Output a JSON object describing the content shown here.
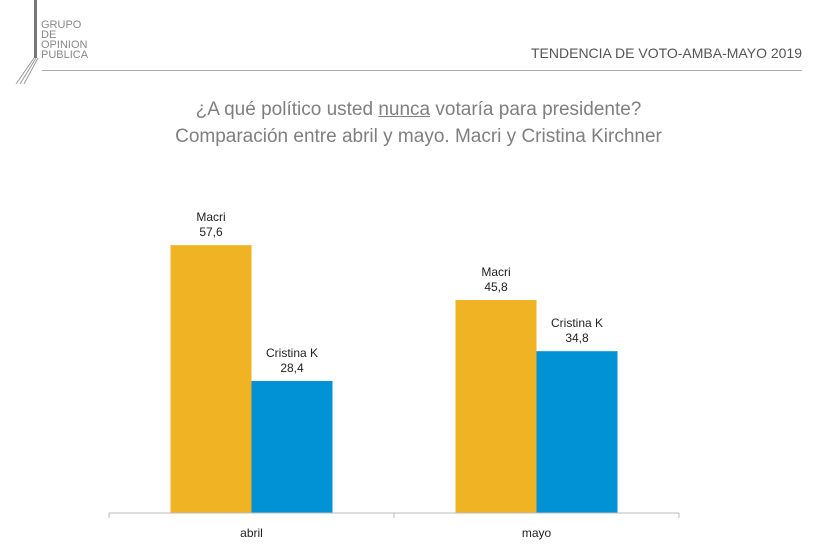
{
  "logo": {
    "lines": [
      "GRUPO",
      "DE",
      "OPINION",
      "PUBLICA"
    ]
  },
  "header": {
    "title": "TENDENCIA DE VOTO-AMBA-MAYO 2019"
  },
  "title": {
    "line1_pre": "¿A qué político usted ",
    "line1_emph": "nunca",
    "line1_post": " votaría para presidente?",
    "line2": "Comparación entre abril y mayo. Macri y Cristina Kirchner"
  },
  "chart_data": {
    "type": "bar",
    "categories": [
      "abril",
      "mayo"
    ],
    "series": [
      {
        "name": "Macri",
        "values": [
          57.6,
          45.8
        ],
        "color": "#F0B323"
      },
      {
        "name": "Cristina K",
        "values": [
          28.4,
          34.8
        ],
        "color": "#0092D4"
      }
    ],
    "data_labels": [
      [
        "57,6",
        "45,8"
      ],
      [
        "28,4",
        "34,8"
      ]
    ],
    "ylim": [
      0,
      60
    ],
    "grid": false,
    "legend": "none"
  }
}
